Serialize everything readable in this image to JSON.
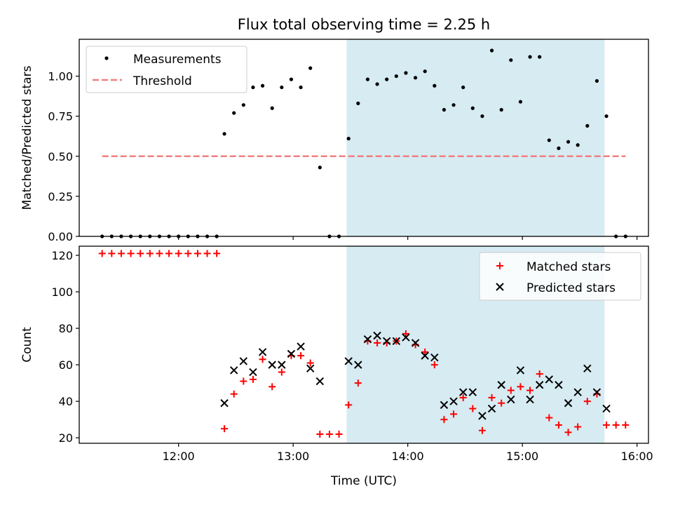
{
  "figure": {
    "title": "Flux total observing time = 2.25 h"
  },
  "chart_data": [
    {
      "type": "scatter",
      "ylabel": "Matched/Predicted stars",
      "xlim": [
        "11:08",
        "16:06"
      ],
      "ylim": [
        0,
        1.23
      ],
      "y_ticks": [
        0.0,
        0.25,
        0.5,
        0.75,
        1.0
      ],
      "y_tick_labels": [
        "0.00",
        "0.25",
        "0.50",
        "0.75",
        "1.00"
      ],
      "x_ticks": [
        "12:00",
        "13:00",
        "14:00",
        "15:00",
        "16:00"
      ],
      "show_x_tick_labels": false,
      "shaded_span": {
        "start": "13:28",
        "end": "15:43",
        "color": "#add8e6"
      },
      "legend_position": "top-left",
      "series": [
        {
          "name": "Measurements",
          "marker": "dot",
          "color": "#000000",
          "x": [
            "11:20",
            "11:25",
            "11:30",
            "11:35",
            "11:40",
            "11:45",
            "11:50",
            "11:55",
            "12:00",
            "12:05",
            "12:10",
            "12:15",
            "12:20",
            "12:24",
            "12:29",
            "12:34",
            "12:39",
            "12:44",
            "12:49",
            "12:54",
            "12:59",
            "13:04",
            "13:09",
            "13:14",
            "13:19",
            "13:24",
            "13:29",
            "13:34",
            "13:39",
            "13:44",
            "13:49",
            "13:54",
            "13:59",
            "14:04",
            "14:09",
            "14:14",
            "14:19",
            "14:24",
            "14:29",
            "14:34",
            "14:39",
            "14:44",
            "14:49",
            "14:54",
            "14:59",
            "15:04",
            "15:09",
            "15:14",
            "15:19",
            "15:24",
            "15:29",
            "15:34",
            "15:39",
            "15:44",
            "15:49",
            "15:54"
          ],
          "y": [
            0,
            0,
            0,
            0,
            0,
            0,
            0,
            0,
            0,
            0,
            0,
            0,
            0,
            0.64,
            0.77,
            0.82,
            0.93,
            0.94,
            0.8,
            0.93,
            0.98,
            0.93,
            1.05,
            0.43,
            0,
            0,
            0.61,
            0.83,
            0.98,
            0.95,
            0.98,
            1.0,
            1.02,
            0.99,
            1.03,
            0.94,
            0.79,
            0.82,
            0.93,
            0.8,
            0.75,
            1.16,
            0.79,
            1.1,
            0.84,
            1.12,
            1.12,
            0.6,
            0.55,
            0.59,
            0.57,
            0.69,
            0.97,
            0.75,
            0,
            0
          ]
        },
        {
          "name": "Threshold",
          "type": "line",
          "style": "dashed",
          "color": "#f08080",
          "x": [
            "11:20",
            "15:54"
          ],
          "y": [
            0.5,
            0.5
          ]
        }
      ]
    },
    {
      "type": "scatter",
      "xlabel": "Time (UTC)",
      "ylabel": "Count",
      "xlim": [
        "11:08",
        "16:06"
      ],
      "ylim": [
        17,
        125
      ],
      "y_ticks": [
        20,
        40,
        60,
        80,
        100,
        120
      ],
      "y_tick_labels": [
        "20",
        "40",
        "60",
        "80",
        "100",
        "120"
      ],
      "x_ticks": [
        "12:00",
        "13:00",
        "14:00",
        "15:00",
        "16:00"
      ],
      "x_tick_labels": [
        "12:00",
        "13:00",
        "14:00",
        "15:00",
        "16:00"
      ],
      "shaded_span": {
        "start": "13:28",
        "end": "15:43",
        "color": "#add8e6"
      },
      "legend_position": "top-right",
      "series": [
        {
          "name": "Matched stars",
          "marker": "plus",
          "color": "#ff0000",
          "x": [
            "11:20",
            "11:25",
            "11:30",
            "11:35",
            "11:40",
            "11:45",
            "11:50",
            "11:55",
            "12:00",
            "12:05",
            "12:10",
            "12:15",
            "12:20",
            "12:24",
            "12:29",
            "12:34",
            "12:39",
            "12:44",
            "12:49",
            "12:54",
            "12:59",
            "13:04",
            "13:09",
            "13:14",
            "13:19",
            "13:24",
            "13:29",
            "13:34",
            "13:39",
            "13:44",
            "13:49",
            "13:54",
            "13:59",
            "14:04",
            "14:09",
            "14:14",
            "14:19",
            "14:24",
            "14:29",
            "14:34",
            "14:39",
            "14:44",
            "14:49",
            "14:54",
            "14:59",
            "15:04",
            "15:09",
            "15:14",
            "15:19",
            "15:24",
            "15:29",
            "15:34",
            "15:39",
            "15:44",
            "15:49",
            "15:54"
          ],
          "y": [
            121,
            121,
            121,
            121,
            121,
            121,
            121,
            121,
            121,
            121,
            121,
            121,
            121,
            25,
            44,
            51,
            52,
            63,
            48,
            56,
            65,
            65,
            61,
            22,
            22,
            22,
            38,
            50,
            73,
            72,
            72,
            73,
            77,
            71,
            67,
            60,
            30,
            33,
            42,
            36,
            24,
            42,
            39,
            46,
            48,
            46,
            55,
            31,
            27,
            23,
            26,
            40,
            44,
            27,
            27,
            27
          ]
        },
        {
          "name": "Predicted stars",
          "marker": "x",
          "color": "#000000",
          "x": [
            "12:24",
            "12:29",
            "12:34",
            "12:39",
            "12:44",
            "12:49",
            "12:54",
            "12:59",
            "13:04",
            "13:09",
            "13:14",
            "13:29",
            "13:34",
            "13:39",
            "13:44",
            "13:49",
            "13:54",
            "13:59",
            "14:04",
            "14:09",
            "14:14",
            "14:19",
            "14:24",
            "14:29",
            "14:34",
            "14:39",
            "14:44",
            "14:49",
            "14:54",
            "14:59",
            "15:04",
            "15:09",
            "15:14",
            "15:19",
            "15:24",
            "15:29",
            "15:34",
            "15:39",
            "15:44"
          ],
          "y": [
            39,
            57,
            62,
            56,
            67,
            60,
            60,
            66,
            70,
            58,
            51,
            62,
            60,
            74,
            76,
            73,
            73,
            75,
            72,
            65,
            64,
            38,
            40,
            45,
            45,
            32,
            36,
            49,
            41,
            57,
            41,
            49,
            52,
            49,
            39,
            45,
            58,
            45,
            36
          ]
        }
      ]
    }
  ]
}
